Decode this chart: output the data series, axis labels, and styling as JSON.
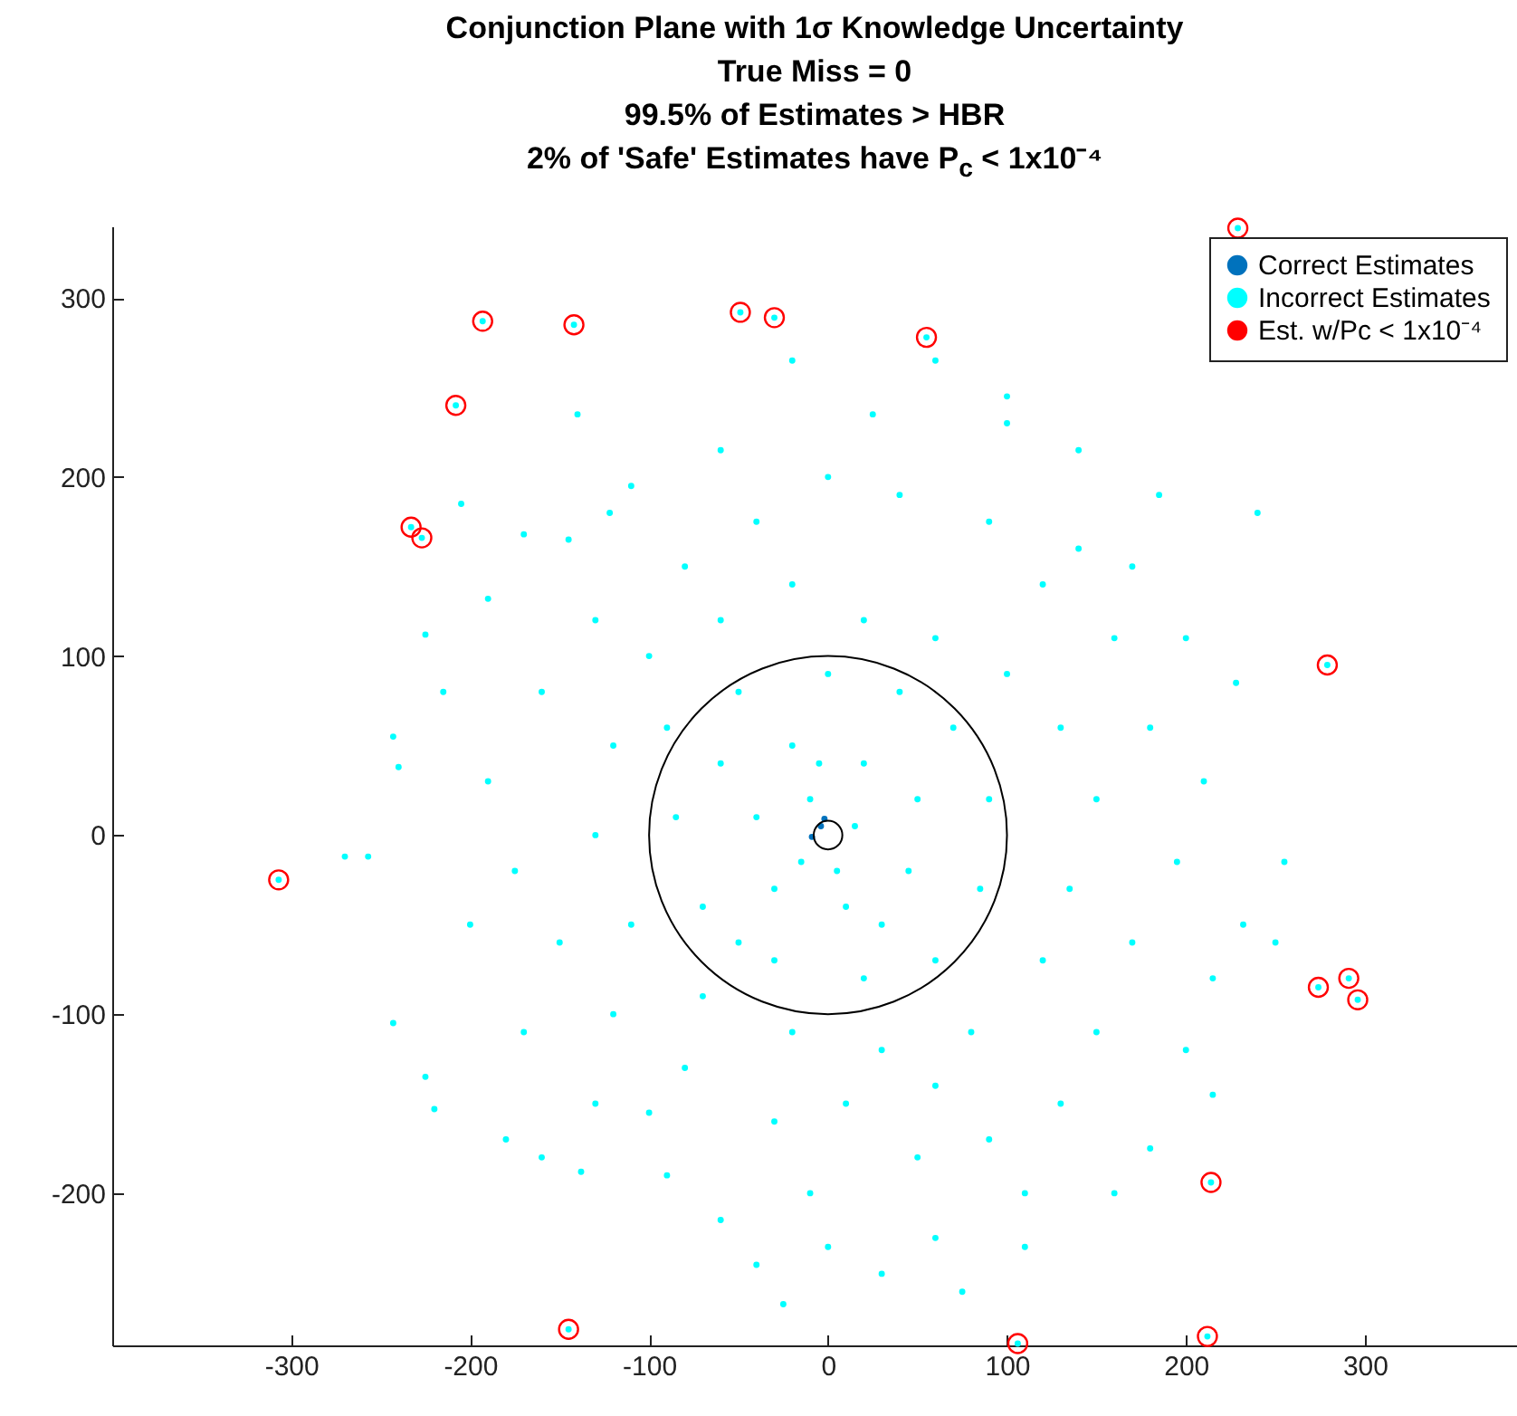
{
  "chart_data": {
    "type": "scatter",
    "title": "Conjunction Plane with 1σ Knowledge Uncertainty\nTrue Miss = 0\n99.5% of Estimates > HBR\n2% of 'Safe' Estimates have P$_{c}$ < 1x10⁻⁴",
    "xlim": [
      -400,
      385
    ],
    "ylim": [
      -285,
      340
    ],
    "xticks": [
      -300,
      -200,
      -100,
      0,
      100,
      200,
      300
    ],
    "yticks": [
      -200,
      -100,
      0,
      100,
      200,
      300
    ],
    "grid": false,
    "legend": "top right",
    "series": [
      {
        "name": "Correct Estimates",
        "color": "#0072bd",
        "x": [
          -2,
          -4,
          -9
        ],
        "values": [
          9,
          5,
          -1
        ]
      },
      {
        "name": "Incorrect Estimates",
        "color": "#00ffff",
        "x": [
          -205,
          -190,
          -257,
          -243,
          -270,
          -225,
          -220,
          -243,
          -240,
          -225,
          -170,
          -145,
          -140,
          -122,
          -180,
          -160,
          -138,
          -100,
          -60,
          -10,
          30,
          0,
          -25,
          75,
          60,
          110,
          180,
          200,
          215,
          250,
          232,
          255,
          210,
          228,
          200,
          240,
          185,
          140,
          140,
          100,
          100,
          60,
          25,
          -20,
          -60,
          -110,
          -80,
          -40,
          0,
          40,
          90,
          120,
          160,
          180,
          195,
          170,
          150,
          130,
          90,
          50,
          10,
          -30,
          -80,
          -120,
          -150,
          -175,
          -190,
          -160,
          -130,
          -100,
          -60,
          -20,
          20,
          60,
          100,
          130,
          150,
          135,
          120,
          80,
          30,
          -20,
          -70,
          -110,
          -130,
          -120,
          -90,
          -50,
          0,
          40,
          70,
          90,
          85,
          60,
          20,
          -30,
          -70,
          -85,
          -60,
          -20,
          20,
          50,
          45,
          10,
          -30,
          -40,
          -10,
          15,
          -15,
          5,
          -5,
          30,
          -50,
          60,
          -90,
          -130,
          170,
          -170,
          -200,
          -215,
          215,
          160,
          -40,
          110,
          229,
          -193,
          -142,
          -49,
          -30,
          55,
          -208,
          -233,
          -227,
          279,
          -307,
          274,
          291,
          296,
          214,
          -145,
          106,
          212
        ],
        "values": [
          185,
          132,
          -12,
          -105,
          -12,
          -135,
          -153,
          55,
          38,
          112,
          168,
          165,
          235,
          180,
          -170,
          -180,
          -188,
          -155,
          -215,
          -200,
          -245,
          -230,
          -262,
          -255,
          -225,
          -230,
          -175,
          -120,
          -145,
          -60,
          -50,
          -15,
          30,
          85,
          110,
          180,
          190,
          160,
          215,
          230,
          245,
          265,
          235,
          265,
          215,
          195,
          150,
          175,
          200,
          190,
          175,
          140,
          110,
          60,
          -15,
          -60,
          -110,
          -150,
          -170,
          -180,
          -150,
          -160,
          -130,
          -100,
          -60,
          -20,
          30,
          80,
          120,
          100,
          120,
          140,
          120,
          110,
          90,
          60,
          20,
          -30,
          -70,
          -110,
          -120,
          -110,
          -90,
          -50,
          0,
          50,
          60,
          80,
          90,
          80,
          60,
          20,
          -30,
          -70,
          -80,
          -70,
          -40,
          10,
          40,
          50,
          40,
          20,
          -20,
          -40,
          -30,
          10,
          20,
          5,
          -15,
          -20,
          40,
          -50,
          -60,
          -140,
          -190,
          -150,
          150,
          -110,
          -50,
          80,
          -80,
          -200,
          -240,
          -200,
          339,
          287,
          285,
          292,
          289,
          278,
          240,
          172,
          166,
          95,
          -25,
          -85,
          -80,
          -92,
          -194,
          -276,
          -284,
          -280
        ]
      },
      {
        "name": "Est. w/Pc < 1x10⁻⁴",
        "color": "#ff0000",
        "marker": "circle",
        "x": [
          229,
          -193,
          -142,
          -49,
          -30,
          55,
          -208,
          -233,
          -227,
          279,
          -307,
          274,
          291,
          296,
          214,
          -145,
          106,
          212
        ],
        "values": [
          339,
          287,
          285,
          292,
          289,
          278,
          240,
          172,
          166,
          95,
          -25,
          -85,
          -80,
          -92,
          -194,
          -276,
          -284,
          -280
        ]
      }
    ]
  }
}
